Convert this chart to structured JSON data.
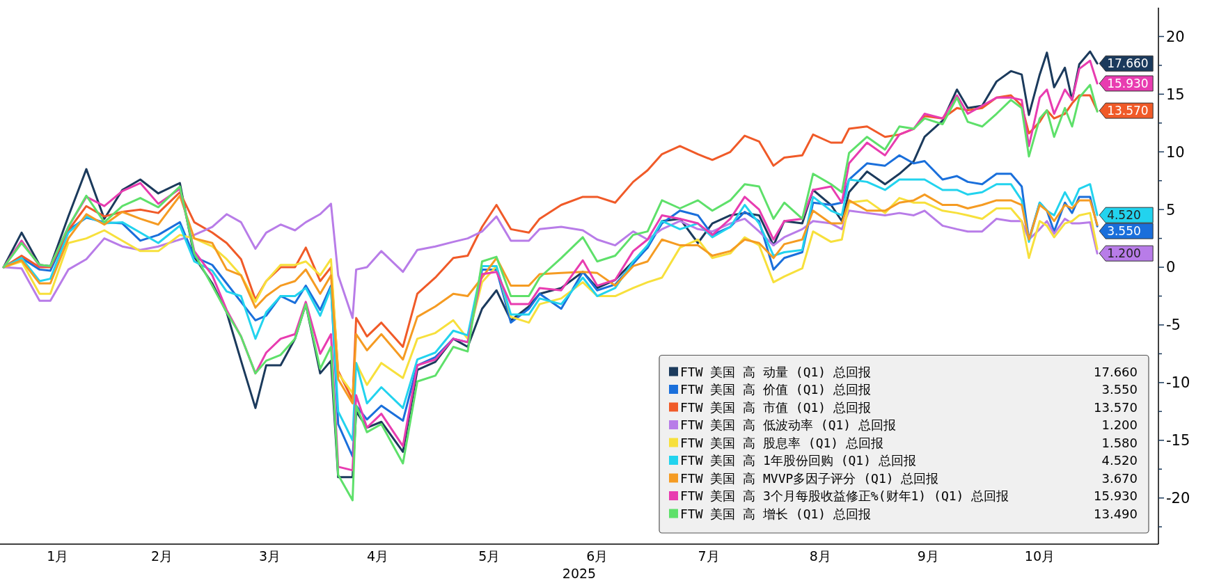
{
  "chart_data": {
    "type": "line",
    "xlabel": "2025",
    "x": [
      "2025-01-01",
      "2025-01-06",
      "2025-01-11",
      "2025-01-14",
      "2025-01-19",
      "2025-01-24",
      "2025-01-29",
      "2025-02-03",
      "2025-02-08",
      "2025-02-13",
      "2025-02-19",
      "2025-02-23",
      "2025-02-28",
      "2025-03-04",
      "2025-03-08",
      "2025-03-12",
      "2025-03-15",
      "2025-03-19",
      "2025-03-23",
      "2025-03-26",
      "2025-03-30",
      "2025-04-02",
      "2025-04-04",
      "2025-04-08",
      "2025-04-09",
      "2025-04-12",
      "2025-04-16",
      "2025-04-22",
      "2025-04-26",
      "2025-05-01",
      "2025-05-06",
      "2025-05-10",
      "2025-05-14",
      "2025-05-18",
      "2025-05-22",
      "2025-05-27",
      "2025-05-30",
      "2025-06-05",
      "2025-06-11",
      "2025-06-15",
      "2025-06-20",
      "2025-06-25",
      "2025-06-29",
      "2025-07-03",
      "2025-07-08",
      "2025-07-13",
      "2025-07-17",
      "2025-07-22",
      "2025-07-26",
      "2025-07-30",
      "2025-08-03",
      "2025-08-06",
      "2025-08-11",
      "2025-08-14",
      "2025-08-19",
      "2025-08-22",
      "2025-08-24",
      "2025-08-29",
      "2025-09-03",
      "2025-09-07",
      "2025-09-11",
      "2025-09-14",
      "2025-09-19",
      "2025-09-23",
      "2025-09-26",
      "2025-09-30",
      "2025-10-04",
      "2025-10-08",
      "2025-10-11",
      "2025-10-13",
      "2025-10-16",
      "2025-10-18",
      "2025-10-20",
      "2025-10-23",
      "2025-10-25",
      "2025-10-27",
      "2025-10-30",
      "2025-11-01"
    ],
    "series": [
      {
        "name": "FTW 美国 高 动量 (Q1) 总回报",
        "color": "#1b3a5c",
        "value_labels": [
          null,
          null,
          null,
          null,
          null,
          null,
          null,
          null,
          null,
          null,
          null,
          null,
          null,
          null,
          null,
          null,
          null,
          null,
          null,
          null,
          null,
          null,
          null,
          null,
          null,
          null,
          null,
          null,
          null,
          null,
          null,
          null,
          null,
          null,
          null,
          null,
          null,
          null,
          null,
          null,
          null,
          null,
          null,
          null,
          null,
          null,
          null,
          null,
          null,
          null,
          null,
          null,
          null,
          null,
          null,
          null,
          null,
          null,
          null,
          null,
          null,
          null,
          null,
          null,
          null,
          null,
          null,
          null,
          null,
          null,
          null,
          null,
          null,
          null,
          null,
          null,
          null,
          "17.660"
        ],
        "values": [
          0,
          3.0,
          0.2,
          0.1,
          4.4,
          8.5,
          4.2,
          6.7,
          7.6,
          6.4,
          7.3,
          0.9,
          -1.4,
          -3.9,
          -8.1,
          -12.2,
          -8.5,
          -8.5,
          -6.2,
          -3.2,
          -9.2,
          -8.1,
          -18.2,
          -18.2,
          -12.5,
          -13.9,
          -13.4,
          -16,
          -8.9,
          -8.2,
          -6.2,
          -6.9,
          -3.6,
          -2.0,
          -4.6,
          -3.4,
          -2.3,
          -1.8,
          -0.4,
          -1.8,
          -1.1,
          0.5,
          1.7,
          4.0,
          4.2,
          2.1,
          3.8,
          4.5,
          4.7,
          4.5,
          1.9,
          4.0,
          3.8,
          6.7,
          5.4,
          4.0,
          6.5,
          8.3,
          7.2,
          8.1,
          9.2,
          11.3,
          12.7,
          15.4,
          13.8,
          14.0,
          16.1,
          17.0,
          16.7,
          13.2,
          16.7,
          18.6,
          15.6,
          17.3,
          14.5,
          17.6,
          18.7,
          17.66
        ]
      },
      {
        "name": "FTW 美国 高 价值 (Q1) 总回报",
        "color": "#1a6fdb",
        "value_labels": [
          null,
          null,
          null,
          null,
          null,
          null,
          null,
          null,
          null,
          null,
          null,
          null,
          null,
          null,
          null,
          null,
          null,
          null,
          null,
          null,
          null,
          null,
          null,
          null,
          null,
          null,
          null,
          null,
          null,
          null,
          null,
          null,
          null,
          null,
          null,
          null,
          null,
          null,
          null,
          null,
          null,
          null,
          null,
          null,
          null,
          null,
          null,
          null,
          null,
          null,
          null,
          null,
          null,
          null,
          null,
          null,
          null,
          null,
          null,
          null,
          null,
          null,
          null,
          null,
          null,
          null,
          null,
          null,
          null,
          null,
          null,
          null,
          null,
          null,
          null,
          null,
          null,
          "3.550"
        ],
        "values": [
          0,
          0.8,
          -0.2,
          -0.3,
          3.2,
          4.3,
          3.9,
          3.8,
          2.3,
          2.8,
          3.9,
          0.9,
          0.2,
          -1.4,
          -3.0,
          -4.6,
          -4.2,
          -2.5,
          -3.1,
          -1.6,
          -3.7,
          -1.6,
          -13.6,
          -16.4,
          -12.0,
          -13.2,
          -12.0,
          -13.3,
          -8.5,
          -7.8,
          -6.2,
          -6.5,
          -0.2,
          -0.2,
          -4.8,
          -3.6,
          -2.3,
          -3.6,
          -0.4,
          -2.0,
          -1.5,
          0.3,
          1.7,
          3.8,
          4.9,
          4.5,
          2.8,
          3.5,
          4.8,
          4.0,
          -0.2,
          0.8,
          1.3,
          5.6,
          5.4,
          5.6,
          7.6,
          9.0,
          8.8,
          9.7,
          9.0,
          9.2,
          7.6,
          7.9,
          7.4,
          7.2,
          8.1,
          8.1,
          7.0,
          2.4,
          5.6,
          4.9,
          3.1,
          5.6,
          4.7,
          6.1,
          6.1,
          3.55
        ]
      },
      {
        "name": "FTW 美国 高 市值 (Q1) 总回报",
        "color": "#f05a28",
        "value_labels": [
          null,
          null,
          null,
          null,
          null,
          null,
          null,
          null,
          null,
          null,
          null,
          null,
          null,
          null,
          null,
          null,
          null,
          null,
          null,
          null,
          null,
          null,
          null,
          null,
          null,
          null,
          null,
          null,
          null,
          null,
          null,
          null,
          null,
          null,
          null,
          null,
          null,
          null,
          null,
          null,
          null,
          null,
          null,
          null,
          null,
          null,
          null,
          null,
          null,
          null,
          null,
          null,
          null,
          null,
          null,
          null,
          null,
          null,
          null,
          null,
          null,
          null,
          null,
          null,
          null,
          null,
          null,
          null,
          null,
          null,
          null,
          null,
          null,
          null,
          null,
          null,
          null,
          "13.570"
        ],
        "values": [
          0,
          1.0,
          0,
          0,
          3.2,
          5.3,
          4.4,
          4.8,
          5.0,
          4.7,
          6.5,
          3.9,
          3.0,
          2.1,
          0.7,
          -2.8,
          -1.2,
          0,
          0,
          1.7,
          -1.2,
          0,
          -9.0,
          -11.5,
          -4.4,
          -6.0,
          -4.8,
          -6.9,
          -2.3,
          -0.9,
          0.8,
          1.0,
          3.5,
          5.4,
          3.3,
          3.0,
          4.2,
          5.4,
          6.1,
          6.1,
          5.6,
          7.4,
          8.4,
          9.8,
          10.5,
          9.8,
          9.3,
          10.0,
          11.4,
          10.9,
          8.8,
          9.5,
          9.7,
          11.5,
          10.8,
          10.8,
          12.0,
          12.2,
          11.3,
          11.5,
          12.0,
          13.1,
          12.9,
          13.8,
          13.6,
          13.8,
          14.7,
          14.9,
          14.0,
          11.6,
          12.6,
          13.6,
          12.9,
          13.3,
          14.2,
          14.9,
          14.9,
          13.57
        ]
      },
      {
        "name": "FTW 美国 高 低波动率 (Q1) 总回报",
        "color": "#b87ce8",
        "value_labels": [
          null,
          null,
          null,
          null,
          null,
          null,
          null,
          null,
          null,
          null,
          null,
          null,
          null,
          null,
          null,
          null,
          null,
          null,
          null,
          null,
          null,
          null,
          null,
          null,
          null,
          null,
          null,
          null,
          null,
          null,
          null,
          null,
          null,
          null,
          null,
          null,
          null,
          null,
          null,
          null,
          null,
          null,
          null,
          null,
          null,
          null,
          null,
          null,
          null,
          null,
          null,
          null,
          null,
          null,
          null,
          null,
          null,
          null,
          null,
          null,
          null,
          null,
          null,
          null,
          null,
          null,
          null,
          null,
          null,
          null,
          null,
          null,
          null,
          null,
          null,
          null,
          null,
          "1.200"
        ],
        "values": [
          0,
          -0.1,
          -2.9,
          -2.9,
          -0.2,
          0.7,
          2.5,
          1.8,
          1.5,
          1.8,
          2.4,
          2.8,
          3.5,
          4.6,
          3.9,
          1.6,
          3.0,
          3.7,
          3.2,
          3.9,
          4.6,
          5.5,
          -0.7,
          -4.4,
          -0.2,
          0,
          1.4,
          -0.4,
          1.5,
          1.8,
          2.2,
          2.5,
          3.1,
          4.4,
          2.3,
          2.3,
          3.3,
          3.5,
          3.2,
          2.4,
          1.9,
          3.1,
          2.4,
          3.3,
          4.0,
          3.3,
          3.1,
          3.8,
          4.2,
          3.1,
          1.9,
          2.6,
          3.3,
          4.0,
          3.8,
          3.3,
          4.9,
          4.7,
          4.5,
          4.7,
          4.5,
          4.9,
          3.6,
          3.3,
          3.1,
          3.1,
          4.2,
          4.0,
          4.0,
          2.4,
          3.3,
          4.0,
          2.9,
          4.2,
          3.8,
          3.8,
          3.9,
          1.2
        ]
      },
      {
        "name": "FTW 美国 高 股息率 (Q1) 总回报",
        "color": "#f7e03c",
        "value_labels": [
          null,
          null,
          null,
          null,
          null,
          null,
          null,
          null,
          null,
          null,
          null,
          null,
          null,
          null,
          null,
          null,
          null,
          null,
          null,
          null,
          null,
          null,
          null,
          null,
          null,
          null,
          null,
          null,
          null,
          null,
          null,
          null,
          null,
          null,
          null,
          null,
          null,
          null,
          null,
          null,
          null,
          null,
          null,
          null,
          null,
          null,
          null,
          null,
          null,
          null,
          null,
          null,
          null,
          null,
          null,
          null,
          null,
          null,
          null,
          null,
          null,
          null,
          null,
          null,
          null,
          null,
          null,
          null,
          null,
          null,
          null,
          null,
          null,
          null,
          null,
          null,
          null,
          null
        ],
        "values": [
          0,
          0.5,
          -2.3,
          -2.3,
          2.1,
          2.5,
          3.2,
          2.3,
          1.4,
          1.4,
          2.8,
          2.5,
          1.8,
          0.7,
          -0.7,
          -3.0,
          -1.2,
          0.2,
          0.2,
          0.5,
          -0.7,
          0.7,
          -9.2,
          -10.9,
          -8.3,
          -10.2,
          -8.3,
          -9.6,
          -6.2,
          -5.7,
          -4.6,
          -6.2,
          -1.3,
          0.1,
          -4.3,
          -4.8,
          -3.2,
          -2.7,
          -1.3,
          -2.5,
          -2.5,
          -1.8,
          -1.3,
          -0.9,
          1.7,
          2.4,
          0.8,
          1.2,
          2.6,
          1.9,
          -1.3,
          -0.8,
          -0.1,
          3.1,
          2.2,
          2.4,
          5.6,
          5.8,
          4.7,
          6.0,
          5.6,
          5.6,
          4.9,
          4.7,
          4.5,
          4.2,
          5.1,
          5.1,
          4.0,
          0.8,
          4.0,
          3.6,
          2.6,
          3.8,
          4.0,
          4.5,
          4.7,
          1.58
        ]
      },
      {
        "name": "FTW 美国 高 1年股份回购 (Q1) 总回报",
        "color": "#22d3ee",
        "value_labels": [
          null,
          null,
          null,
          null,
          null,
          null,
          null,
          null,
          null,
          null,
          null,
          null,
          null,
          null,
          null,
          null,
          null,
          null,
          null,
          null,
          null,
          null,
          null,
          null,
          null,
          null,
          null,
          null,
          null,
          null,
          null,
          null,
          null,
          null,
          null,
          null,
          null,
          null,
          null,
          null,
          null,
          null,
          null,
          null,
          null,
          null,
          null,
          null,
          null,
          null,
          null,
          null,
          null,
          null,
          null,
          null,
          null,
          null,
          null,
          null,
          null,
          null,
          null,
          null,
          null,
          null,
          null,
          null,
          null,
          null,
          null,
          null,
          null,
          null,
          null,
          null,
          null,
          "4.520"
        ],
        "values": [
          0,
          0.8,
          -1.2,
          -1.0,
          3.0,
          4.4,
          3.8,
          3.9,
          3.0,
          2.1,
          3.6,
          0.5,
          -0.3,
          -2.1,
          -2.5,
          -6.2,
          -3.9,
          -2.5,
          -2.5,
          -1.8,
          -4.2,
          -1.8,
          -12.5,
          -15.0,
          -8.3,
          -11.8,
          -10.4,
          -12.2,
          -8.0,
          -7.4,
          -5.5,
          -5.9,
          0.1,
          0.1,
          -4.1,
          -4.1,
          -2.7,
          -3.2,
          -0.9,
          -2.5,
          -1.8,
          0.5,
          1.9,
          4.0,
          3.3,
          3.8,
          2.6,
          3.5,
          5.4,
          3.8,
          1.0,
          1.3,
          1.5,
          6.1,
          4.9,
          4.5,
          7.6,
          7.4,
          6.7,
          7.6,
          7.6,
          7.6,
          6.7,
          6.7,
          6.3,
          6.5,
          7.2,
          7.2,
          5.8,
          2.2,
          5.6,
          4.9,
          4.5,
          6.5,
          5.4,
          6.8,
          7.2,
          4.52
        ]
      },
      {
        "name": "FTW 美国 高 MVVP多因子评分 (Q1) 总回报",
        "color": "#f59b22",
        "value_labels": [
          null,
          null,
          null,
          null,
          null,
          null,
          null,
          null,
          null,
          null,
          null,
          null,
          null,
          null,
          null,
          null,
          null,
          null,
          null,
          null,
          null,
          null,
          null,
          null,
          null,
          null,
          null,
          null,
          null,
          null,
          null,
          null,
          null,
          null,
          null,
          null,
          null,
          null,
          null,
          null,
          null,
          null,
          null,
          null,
          null,
          null,
          null,
          null,
          null,
          null,
          null,
          null,
          null,
          null,
          null,
          null,
          null,
          null,
          null,
          null,
          null,
          null,
          null,
          null,
          null,
          null,
          null,
          null,
          null,
          null,
          null,
          null,
          null,
          null,
          null,
          null,
          null,
          null
        ],
        "values": [
          0,
          0.6,
          -1.4,
          -1.4,
          2.5,
          4.6,
          3.7,
          4.8,
          4.2,
          3.7,
          6.2,
          2.5,
          2.1,
          -0.2,
          -0.7,
          -3.5,
          -2.5,
          -1.6,
          -1.2,
          -0.2,
          -2.3,
          -0.7,
          -9.7,
          -11.8,
          -5.8,
          -7.2,
          -5.8,
          -8.0,
          -4.3,
          -3.4,
          -2.3,
          -2.5,
          -0.9,
          0.8,
          -1.6,
          -1.6,
          -0.6,
          -0.5,
          -0.4,
          -0.5,
          -1.6,
          0.1,
          0.5,
          2.4,
          1.9,
          1.9,
          1.0,
          1.4,
          2.4,
          2.1,
          0.8,
          2.0,
          2.4,
          4.9,
          3.8,
          3.8,
          5.8,
          4.9,
          4.9,
          5.6,
          5.8,
          6.3,
          5.4,
          5.4,
          5.1,
          5.4,
          5.8,
          5.8,
          5.4,
          2.4,
          5.4,
          4.9,
          4.0,
          5.4,
          5.1,
          5.8,
          5.8,
          3.67
        ]
      },
      {
        "name": "FTW 美国 高 3个月每股收益修正%(财年1) (Q1) 总回报",
        "color": "#e83cb0",
        "value_labels": [
          null,
          null,
          null,
          null,
          null,
          null,
          null,
          null,
          null,
          null,
          null,
          null,
          null,
          null,
          null,
          null,
          null,
          null,
          null,
          null,
          null,
          null,
          null,
          null,
          null,
          null,
          null,
          null,
          null,
          null,
          null,
          null,
          null,
          null,
          null,
          null,
          null,
          null,
          null,
          null,
          null,
          null,
          null,
          null,
          null,
          null,
          null,
          null,
          null,
          null,
          null,
          null,
          null,
          null,
          null,
          null,
          null,
          null,
          null,
          null,
          null,
          null,
          null,
          null,
          null,
          null,
          null,
          null,
          null,
          null,
          null,
          null,
          null,
          null,
          null,
          null,
          null,
          "15.930"
        ],
        "values": [
          0,
          2.3,
          0.1,
          0.1,
          3.5,
          6.1,
          5.3,
          6.6,
          7.3,
          5.5,
          6.8,
          1.4,
          -0.7,
          -3.7,
          -6.0,
          -9.2,
          -7.4,
          -6.2,
          -5.8,
          -3.0,
          -7.5,
          -5.8,
          -17.3,
          -17.6,
          -11.1,
          -13.9,
          -12.7,
          -15.5,
          -8.5,
          -8.0,
          -6.2,
          -6.5,
          -0.6,
          -0.4,
          -3.2,
          -3.2,
          -1.8,
          -2.0,
          0.6,
          -1.6,
          -1.1,
          1.4,
          2.4,
          4.5,
          4.2,
          3.8,
          2.8,
          4.2,
          6.1,
          5.0,
          2.4,
          4.0,
          4.2,
          6.7,
          7.0,
          5.6,
          9.0,
          10.8,
          9.7,
          11.5,
          12.0,
          13.3,
          12.9,
          14.9,
          13.3,
          14.0,
          14.7,
          14.7,
          14.5,
          10.5,
          14.7,
          15.4,
          13.3,
          15.4,
          14.5,
          17.2,
          17.9,
          15.93
        ]
      },
      {
        "name": "FTW 美国 高 增长 (Q1) 总回报",
        "color": "#5ee06a",
        "value_labels": [
          null,
          null,
          null,
          null,
          null,
          null,
          null,
          null,
          null,
          null,
          null,
          null,
          null,
          null,
          null,
          null,
          null,
          null,
          null,
          null,
          null,
          null,
          null,
          null,
          null,
          null,
          null,
          null,
          null,
          null,
          null,
          null,
          null,
          null,
          null,
          null,
          null,
          null,
          null,
          null,
          null,
          null,
          null,
          null,
          null,
          null,
          null,
          null,
          null,
          null,
          null,
          null,
          null,
          null,
          null,
          null,
          null,
          null,
          null,
          null,
          null,
          null,
          null,
          null,
          null,
          null,
          null,
          null,
          null,
          null,
          null,
          null,
          null,
          null,
          null,
          null,
          null,
          null
        ],
        "values": [
          0,
          2.1,
          0.2,
          0.1,
          3.5,
          6.2,
          3.9,
          5.3,
          6.0,
          5.2,
          7.0,
          1.2,
          -1.6,
          -3.9,
          -6.0,
          -9.2,
          -8.1,
          -7.6,
          -6.2,
          -3.2,
          -8.8,
          -6.9,
          -18.0,
          -20.2,
          -12.0,
          -14.3,
          -13.6,
          -17,
          -9.9,
          -9.4,
          -6.9,
          -7.3,
          0.5,
          0.9,
          -2.5,
          -2.5,
          -0.9,
          0.8,
          2.6,
          0.5,
          1.0,
          2.8,
          3.1,
          5.8,
          5.1,
          5.8,
          4.9,
          5.8,
          7.2,
          7.0,
          4.2,
          5.6,
          4.2,
          8.1,
          7.2,
          6.5,
          9.9,
          11.3,
          10.2,
          12.2,
          12.0,
          12.9,
          12.4,
          14.7,
          12.6,
          12.2,
          13.3,
          14.5,
          13.8,
          9.6,
          12.9,
          13.6,
          11.3,
          13.8,
          12.2,
          14.7,
          15.8,
          13.49
        ]
      }
    ],
    "xlim": [
      "2024-12-31",
      "2025-11-18"
    ],
    "xticks": [
      {
        "value": "2025-01-16",
        "label": "1月"
      },
      {
        "value": "2025-02-14",
        "label": "2月"
      },
      {
        "value": "2025-03-16",
        "label": "3月"
      },
      {
        "value": "2025-04-15",
        "label": "4月"
      },
      {
        "value": "2025-05-16",
        "label": "5月"
      },
      {
        "value": "2025-06-15",
        "label": "6月"
      },
      {
        "value": "2025-07-16",
        "label": "7月"
      },
      {
        "value": "2025-08-16",
        "label": "8月"
      },
      {
        "value": "2025-09-15",
        "label": "9月"
      },
      {
        "value": "2025-10-16",
        "label": "10月"
      }
    ],
    "ylim": [
      -24,
      22.5
    ],
    "yticks": [
      {
        "value": -22.5,
        "label": null
      },
      -20,
      {
        "value": -17.5,
        "label": null
      },
      -15,
      {
        "value": -12.5,
        "label": null
      },
      -10,
      {
        "value": -7.5,
        "label": null
      },
      -5,
      {
        "value": -2.5,
        "label": null
      },
      0,
      {
        "value": 2.5,
        "label": null
      },
      5,
      {
        "value": 7.5,
        "label": null
      },
      10,
      {
        "value": 12.5,
        "label": null
      },
      15,
      {
        "value": 17.5,
        "label": null
      },
      20
    ],
    "grid": false,
    "legend": "bottom right",
    "marker": "none",
    "line_style": "solid",
    "annotations": [
      "17.660",
      "3.550",
      "13.570",
      "1.200",
      "1.580",
      "4.520",
      "3.670",
      "15.930",
      "13.490"
    ]
  }
}
